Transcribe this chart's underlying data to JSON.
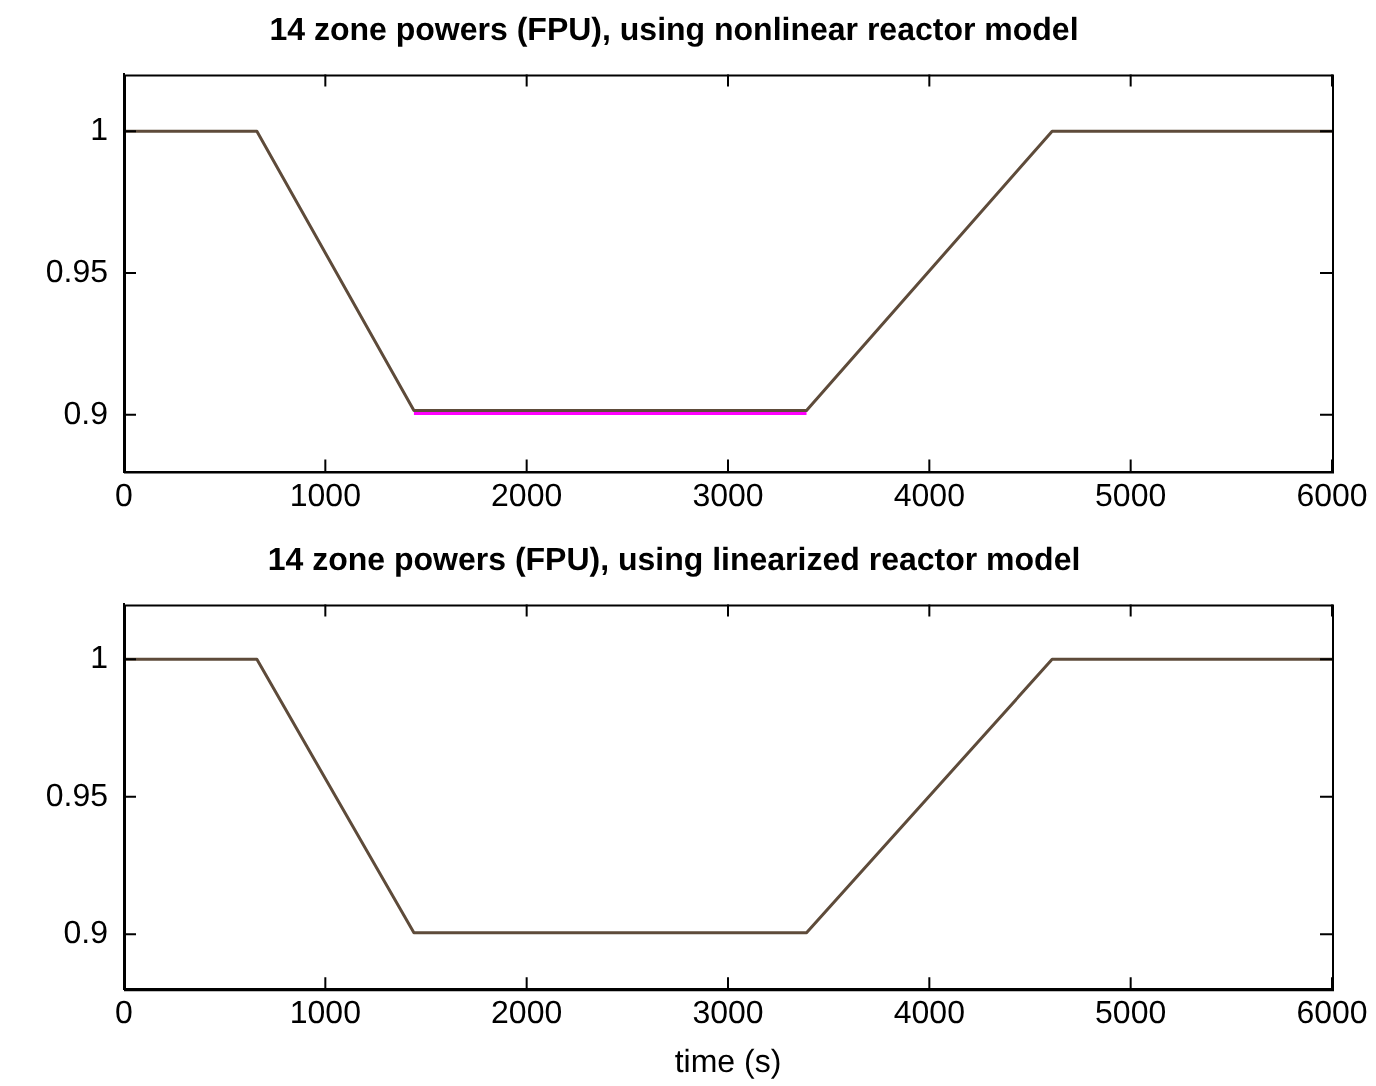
{
  "chart_data": [
    {
      "type": "line",
      "title": "14 zone powers (FPU), using nonlinear reactor model",
      "series": [
        {
          "color": "#5e4b3a",
          "x": [
            0,
            660,
            1440,
            3390,
            4610,
            6000
          ],
          "values": [
            1,
            1,
            0.9015,
            0.9015,
            1,
            1
          ]
        },
        {
          "color": "#ff00ff",
          "x": [
            1440,
            3390
          ],
          "values": [
            0.9005,
            0.9005
          ]
        }
      ],
      "xlim": [
        0,
        6000
      ],
      "xticks": [
        0,
        1000,
        2000,
        3000,
        4000,
        5000,
        6000
      ],
      "ylim": [
        0.88,
        1.02
      ],
      "yticks": [
        0.9,
        0.95,
        1
      ],
      "grid": false,
      "legend": false,
      "marker": "none",
      "line_style": "solid"
    },
    {
      "type": "line",
      "title": "14 zone powers (FPU), using linearized reactor model",
      "xlabel": "time (s)",
      "series": [
        {
          "color": "#5e4b3a",
          "x": [
            0,
            660,
            1440,
            3390,
            4610,
            6000
          ],
          "values": [
            1,
            1,
            0.9005,
            0.9005,
            1,
            1
          ]
        }
      ],
      "xlim": [
        0,
        6000
      ],
      "xticks": [
        0,
        1000,
        2000,
        3000,
        4000,
        5000,
        6000
      ],
      "ylim": [
        0.88,
        1.02
      ],
      "yticks": [
        0.9,
        0.95,
        1
      ],
      "grid": false,
      "legend": false,
      "marker": "none",
      "line_style": "solid"
    }
  ]
}
